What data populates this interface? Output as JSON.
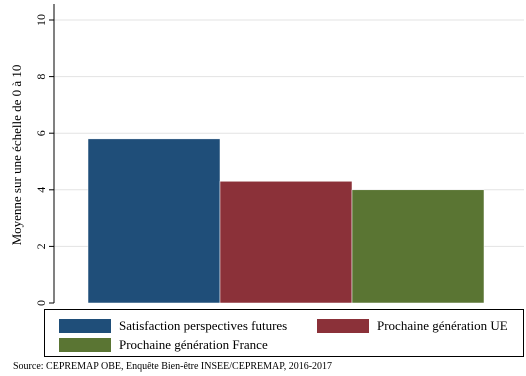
{
  "chart_data": {
    "type": "bar",
    "categories": [
      "Satisfaction perspectives futures",
      "Prochaine génération UE",
      "Prochaine génération France"
    ],
    "values": [
      5.8,
      4.3,
      4.0
    ],
    "colors": [
      "#1f4e79",
      "#8b3139",
      "#5a7533"
    ],
    "ylabel": "Moyenne sur une échelle de 0 à 10",
    "xlabel": "",
    "ylim": [
      0,
      10
    ],
    "yticks": [
      0,
      2,
      4,
      6,
      8,
      10
    ],
    "grid": true,
    "legend": {
      "placement": "bottom",
      "entries": [
        "Satisfaction perspectives futures",
        "Prochaine génération UE",
        "Prochaine génération France"
      ]
    },
    "source": "Source: CEPREMAP OBE, Enquête Bien-être INSEE/CEPREMAP, 2016-2017"
  }
}
